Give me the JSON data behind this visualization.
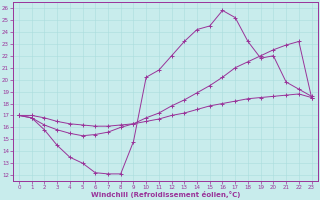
{
  "xlabel": "Windchill (Refroidissement éolien,°C)",
  "xlim": [
    0,
    23
  ],
  "ylim": [
    12,
    26
  ],
  "xticks": [
    0,
    1,
    2,
    3,
    4,
    5,
    6,
    7,
    8,
    9,
    10,
    11,
    12,
    13,
    14,
    15,
    16,
    17,
    18,
    19,
    20,
    21,
    22,
    23
  ],
  "yticks": [
    12,
    13,
    14,
    15,
    16,
    17,
    18,
    19,
    20,
    21,
    22,
    23,
    24,
    25,
    26
  ],
  "bg_color": "#c8ecec",
  "line_color": "#993399",
  "grid_color": "#aadddd",
  "line1_x": [
    0,
    1,
    2,
    3,
    4,
    5,
    6,
    7,
    8,
    9,
    10,
    11,
    12,
    13,
    14,
    15,
    16,
    17,
    18,
    19,
    20,
    21,
    22,
    23
  ],
  "line1_y": [
    17.0,
    16.8,
    15.8,
    14.5,
    13.5,
    13.0,
    12.2,
    12.1,
    12.1,
    14.8,
    20.2,
    20.8,
    22.0,
    23.2,
    24.2,
    24.5,
    25.8,
    25.2,
    23.2,
    21.8,
    22.0,
    19.8,
    19.2,
    18.6
  ],
  "line2_x": [
    0,
    1,
    2,
    3,
    4,
    5,
    6,
    7,
    8,
    9,
    10,
    11,
    12,
    13,
    14,
    15,
    16,
    17,
    18,
    19,
    20,
    21,
    22,
    23
  ],
  "line2_y": [
    17.0,
    16.8,
    16.2,
    15.8,
    15.5,
    15.3,
    15.4,
    15.6,
    16.0,
    16.3,
    16.8,
    17.2,
    17.8,
    18.3,
    18.9,
    19.5,
    20.2,
    21.0,
    21.5,
    22.0,
    22.5,
    22.9,
    23.2,
    18.5
  ],
  "line3_x": [
    0,
    1,
    2,
    3,
    4,
    5,
    6,
    7,
    8,
    9,
    10,
    11,
    12,
    13,
    14,
    15,
    16,
    17,
    18,
    19,
    20,
    21,
    22,
    23
  ],
  "line3_y": [
    17.0,
    17.0,
    16.8,
    16.5,
    16.3,
    16.2,
    16.1,
    16.1,
    16.2,
    16.3,
    16.5,
    16.7,
    17.0,
    17.2,
    17.5,
    17.8,
    18.0,
    18.2,
    18.4,
    18.5,
    18.6,
    18.7,
    18.8,
    18.5
  ]
}
